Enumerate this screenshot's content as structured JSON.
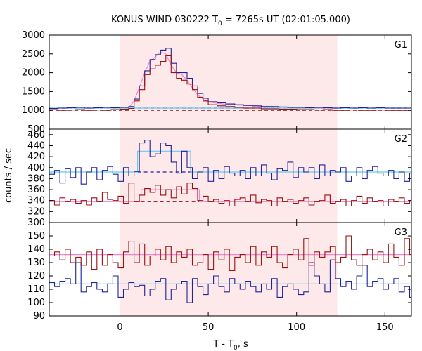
{
  "chart_data": {
    "type": "line",
    "title_main": "KONUS-WIND 030222 T",
    "title_sub": "0",
    "title_rest": " = 7265s UT (02:01:05.000)",
    "xlabel_main": "T - T",
    "xlabel_sub": "0",
    "xlabel_rest": ", s",
    "ylabel": "counts / sec",
    "xlim": [
      -40,
      165
    ],
    "xticks": [
      0,
      50,
      100,
      150
    ],
    "highlight_interval": [
      0,
      123
    ],
    "colors": {
      "highlight": "#fde8ea",
      "blue": "#22229a",
      "red": "#991111",
      "cyan": "#66ccee",
      "pink": "#ee88cc"
    },
    "panels": [
      {
        "label": "G1",
        "ylim": [
          500,
          3000
        ],
        "yticks": [
          500,
          1000,
          1500,
          2000,
          2500,
          3000
        ],
        "background": 1060,
        "series": [
          {
            "name": "blue",
            "color": "#22229a",
            "x": [
              -40,
              -35,
              -30,
              -25,
              -20,
              -15,
              -10,
              -5,
              0,
              5,
              8,
              11,
              14,
              17,
              20,
              23,
              26,
              29,
              32,
              35,
              38,
              41,
              44,
              47,
              50,
              55,
              60,
              65,
              70,
              75,
              80,
              85,
              90,
              95,
              100,
              105,
              110,
              115,
              120,
              125,
              130,
              135,
              140,
              145,
              150,
              155,
              160,
              165
            ],
            "y": [
              1050,
              1060,
              1070,
              1080,
              1060,
              1070,
              1080,
              1070,
              1080,
              1100,
              1300,
              1650,
              2050,
              2350,
              2480,
              2600,
              2650,
              2250,
              2000,
              2000,
              1850,
              1650,
              1450,
              1320,
              1230,
              1200,
              1170,
              1150,
              1130,
              1120,
              1100,
              1100,
              1090,
              1080,
              1080,
              1070,
              1080,
              1070,
              1060,
              1070,
              1060,
              1070,
              1060,
              1070,
              1060,
              1060,
              1060,
              1060
            ]
          },
          {
            "name": "red",
            "color": "#991111",
            "x": [
              -40,
              -35,
              -30,
              -25,
              -20,
              -15,
              -10,
              -5,
              0,
              5,
              8,
              11,
              14,
              17,
              20,
              23,
              26,
              29,
              32,
              35,
              38,
              41,
              44,
              47,
              50,
              55,
              60,
              65,
              70,
              75,
              80,
              85,
              90,
              95,
              100,
              105,
              110,
              115,
              120,
              125,
              130,
              135,
              140,
              145,
              150,
              155,
              160,
              165
            ],
            "y": [
              1020,
              1000,
              1010,
              1020,
              1000,
              1010,
              1000,
              1020,
              1030,
              1050,
              1250,
              1550,
              1950,
              2100,
              2200,
              2300,
              2450,
              2000,
              1850,
              1800,
              1700,
              1550,
              1350,
              1250,
              1150,
              1120,
              1100,
              1080,
              1060,
              1060,
              1040,
              1040,
              1030,
              1030,
              1020,
              1020,
              1010,
              1020,
              1000,
              1000,
              1010,
              1000,
              1000,
              1010,
              1000,
              1000,
              1000,
              1000
            ]
          }
        ],
        "fits": [
          {
            "color": "#66ccee",
            "x": [
              -40,
              165
            ],
            "y": [
              1060,
              1060
            ]
          },
          {
            "color": "#ee88cc",
            "x": [
              5,
              8,
              11,
              14,
              17,
              20,
              23,
              26,
              29,
              32,
              35,
              38,
              41,
              44,
              47,
              50,
              60,
              80,
              100,
              123
            ],
            "y": [
              1060,
              1250,
              1600,
              2000,
              2300,
              2420,
              2550,
              2500,
              2200,
              2000,
              1950,
              1800,
              1600,
              1420,
              1300,
              1220,
              1160,
              1110,
              1080,
              1060
            ]
          }
        ],
        "dashed": [
          {
            "color": "#22229a",
            "x": [
              -40,
              165
            ],
            "y": [
              1060,
              1060
            ]
          },
          {
            "color": "#991111",
            "x": [
              -40,
              165
            ],
            "y": [
              1000,
              1000
            ]
          }
        ]
      },
      {
        "label": "G2",
        "ylim": [
          300,
          470
        ],
        "yticks": [
          300,
          320,
          340,
          360,
          380,
          400,
          420,
          440,
          460
        ],
        "series": [
          {
            "name": "blue",
            "color": "#22229a",
            "x": [
              -40,
              -37,
              -34,
              -31,
              -28,
              -25,
              -22,
              -19,
              -16,
              -13,
              -10,
              -7,
              -4,
              -1,
              2,
              5,
              8,
              11,
              14,
              17,
              20,
              23,
              26,
              29,
              32,
              35,
              38,
              41,
              44,
              47,
              50,
              53,
              56,
              59,
              62,
              65,
              68,
              71,
              74,
              77,
              80,
              83,
              86,
              89,
              92,
              95,
              98,
              101,
              104,
              107,
              110,
              113,
              116,
              119,
              122,
              125,
              128,
              131,
              134,
              137,
              140,
              143,
              146,
              149,
              152,
              155,
              158,
              161,
              164
            ],
            "y": [
              388,
              395,
              372,
              398,
              382,
              400,
              370,
              392,
              400,
              378,
              395,
              402,
              388,
              375,
              400,
              385,
              393,
              445,
              450,
              420,
              425,
              445,
              440,
              410,
              390,
              430,
              400,
              380,
              392,
              400,
              375,
              395,
              380,
              402,
              390,
              385,
              395,
              380,
              400,
              385,
              405,
              390,
              378,
              398,
              395,
              410,
              382,
              400,
              392,
              400,
              380,
              405,
              385,
              395,
              392,
              400,
              375,
              385,
              400,
              380,
              395,
              402,
              390,
              385,
              395,
              380,
              392,
              375,
              390
            ]
          },
          {
            "name": "red",
            "color": "#991111",
            "x": [
              -40,
              -37,
              -34,
              -31,
              -28,
              -25,
              -22,
              -19,
              -16,
              -13,
              -10,
              -7,
              -4,
              -1,
              2,
              5,
              8,
              11,
              14,
              17,
              20,
              23,
              26,
              29,
              32,
              35,
              38,
              41,
              44,
              47,
              50,
              53,
              56,
              59,
              62,
              65,
              68,
              71,
              74,
              77,
              80,
              83,
              86,
              89,
              92,
              95,
              98,
              101,
              104,
              107,
              110,
              113,
              116,
              119,
              122,
              125,
              128,
              131,
              134,
              137,
              140,
              143,
              146,
              149,
              152,
              155,
              158,
              161,
              164
            ],
            "y": [
              340,
              332,
              345,
              338,
              342,
              335,
              340,
              332,
              345,
              338,
              355,
              342,
              340,
              348,
              335,
              372,
              338,
              350,
              362,
              355,
              368,
              350,
              360,
              345,
              365,
              352,
              372,
              362,
              340,
              348,
              338,
              342,
              335,
              340,
              330,
              342,
              345,
              338,
              350,
              336,
              342,
              340,
              330,
              345,
              338,
              342,
              335,
              340,
              345,
              332,
              338,
              340,
              350,
              335,
              338,
              342,
              330,
              340,
              348,
              335,
              345,
              338,
              340,
              330,
              342,
              338,
              345,
              335,
              340
            ]
          }
        ],
        "fits": [
          {
            "color": "#66ccee",
            "x": [
              -40,
              10,
              10,
              40,
              40,
              165
            ],
            "y": [
              392,
              392,
              430,
              430,
              392,
              392
            ]
          },
          {
            "color": "#ee88cc",
            "x": [
              -40,
              12,
              12,
              45,
              45,
              165
            ],
            "y": [
              338,
              338,
              360,
              360,
              338,
              338
            ]
          }
        ],
        "dashed": [
          {
            "color": "#22229a",
            "x": [
              10,
              42
            ],
            "y": [
              392,
              392
            ]
          },
          {
            "color": "#991111",
            "x": [
              12,
              45
            ],
            "y": [
              338,
              338
            ]
          }
        ]
      },
      {
        "label": "G3",
        "ylim": [
          90,
          160
        ],
        "yticks": [
          90,
          100,
          110,
          120,
          130,
          140,
          150
        ],
        "series": [
          {
            "name": "blue",
            "color": "#22229a",
            "x": [
              -40,
              -37,
              -34,
              -31,
              -28,
              -25,
              -22,
              -19,
              -16,
              -13,
              -10,
              -7,
              -4,
              -1,
              2,
              5,
              8,
              11,
              14,
              17,
              20,
              23,
              26,
              29,
              32,
              35,
              38,
              41,
              44,
              47,
              50,
              53,
              56,
              59,
              62,
              65,
              68,
              71,
              74,
              77,
              80,
              83,
              86,
              89,
              92,
              95,
              98,
              101,
              104,
              107,
              110,
              113,
              116,
              119,
              122,
              125,
              128,
              131,
              134,
              137,
              140,
              143,
              146,
              149,
              152,
              155,
              158,
              161,
              164
            ],
            "y": [
              115,
              112,
              116,
              118,
              114,
              130,
              108,
              112,
              115,
              110,
              108,
              114,
              120,
              104,
              110,
              115,
              112,
              113,
              105,
              110,
              116,
              118,
              102,
              110,
              114,
              116,
              100,
              118,
              112,
              106,
              114,
              120,
              112,
              108,
              118,
              114,
              110,
              116,
              112,
              108,
              114,
              110,
              118,
              104,
              112,
              114,
              110,
              106,
              108,
              130,
              120,
              114,
              108,
              132,
              118,
              112,
              116,
              110,
              120,
              128,
              112,
              116,
              118,
              110,
              114,
              118,
              108,
              112,
              104
            ]
          },
          {
            "name": "red",
            "color": "#991111",
            "x": [
              -40,
              -37,
              -34,
              -31,
              -28,
              -25,
              -22,
              -19,
              -16,
              -13,
              -10,
              -7,
              -4,
              -1,
              2,
              5,
              8,
              11,
              14,
              17,
              20,
              23,
              26,
              29,
              32,
              35,
              38,
              41,
              44,
              47,
              50,
              53,
              56,
              59,
              62,
              65,
              68,
              71,
              74,
              77,
              80,
              83,
              86,
              89,
              92,
              95,
              98,
              101,
              104,
              107,
              110,
              113,
              116,
              119,
              122,
              125,
              128,
              131,
              134,
              137,
              140,
              143,
              146,
              149,
              152,
              155,
              158,
              161,
              164
            ],
            "y": [
              135,
              138,
              132,
              140,
              130,
              134,
              128,
              138,
              125,
              140,
              128,
              136,
              130,
              126,
              138,
              146,
              130,
              144,
              128,
              135,
              140,
              132,
              142,
              130,
              138,
              134,
              140,
              128,
              130,
              136,
              125,
              138,
              132,
              140,
              124,
              134,
              136,
              130,
              142,
              128,
              138,
              134,
              142,
              130,
              126,
              136,
              140,
              132,
              148,
              128,
              138,
              134,
              138,
              142,
              130,
              134,
              150,
              132,
              128,
              136,
              140,
              132,
              138,
              130,
              144,
              134,
              128,
              148,
              136
            ]
          }
        ],
        "fits": [
          {
            "color": "#66ccee",
            "x": [
              -40,
              165
            ],
            "y": [
              114,
              114
            ]
          },
          {
            "color": "#ee88cc",
            "x": [
              -40,
              165
            ],
            "y": [
              136,
              136
            ]
          }
        ],
        "dashed": []
      }
    ]
  }
}
